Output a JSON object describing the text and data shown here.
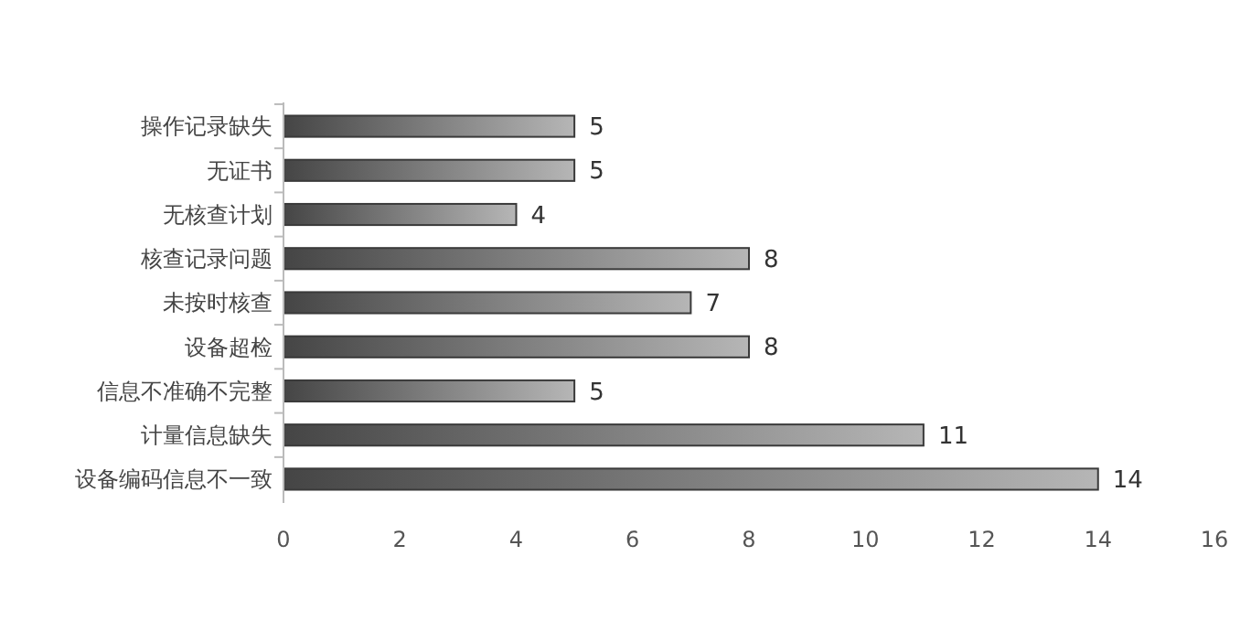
{
  "chart_data": {
    "type": "bar",
    "orientation": "horizontal",
    "categories": [
      "操作记录缺失",
      "无证书",
      "无核查计划",
      "核查记录问题",
      "未按时核查",
      "设备超检",
      "信息不准确不完整",
      "计量信息缺失",
      "设备编码信息不一致"
    ],
    "values": [
      5,
      5,
      4,
      8,
      7,
      8,
      5,
      11,
      14
    ],
    "color": "#3a3a3a",
    "xlim": [
      0,
      16
    ],
    "xticks": [
      0,
      2,
      4,
      6,
      8,
      10,
      12,
      14,
      16
    ],
    "data_labels": true,
    "grid": false
  }
}
